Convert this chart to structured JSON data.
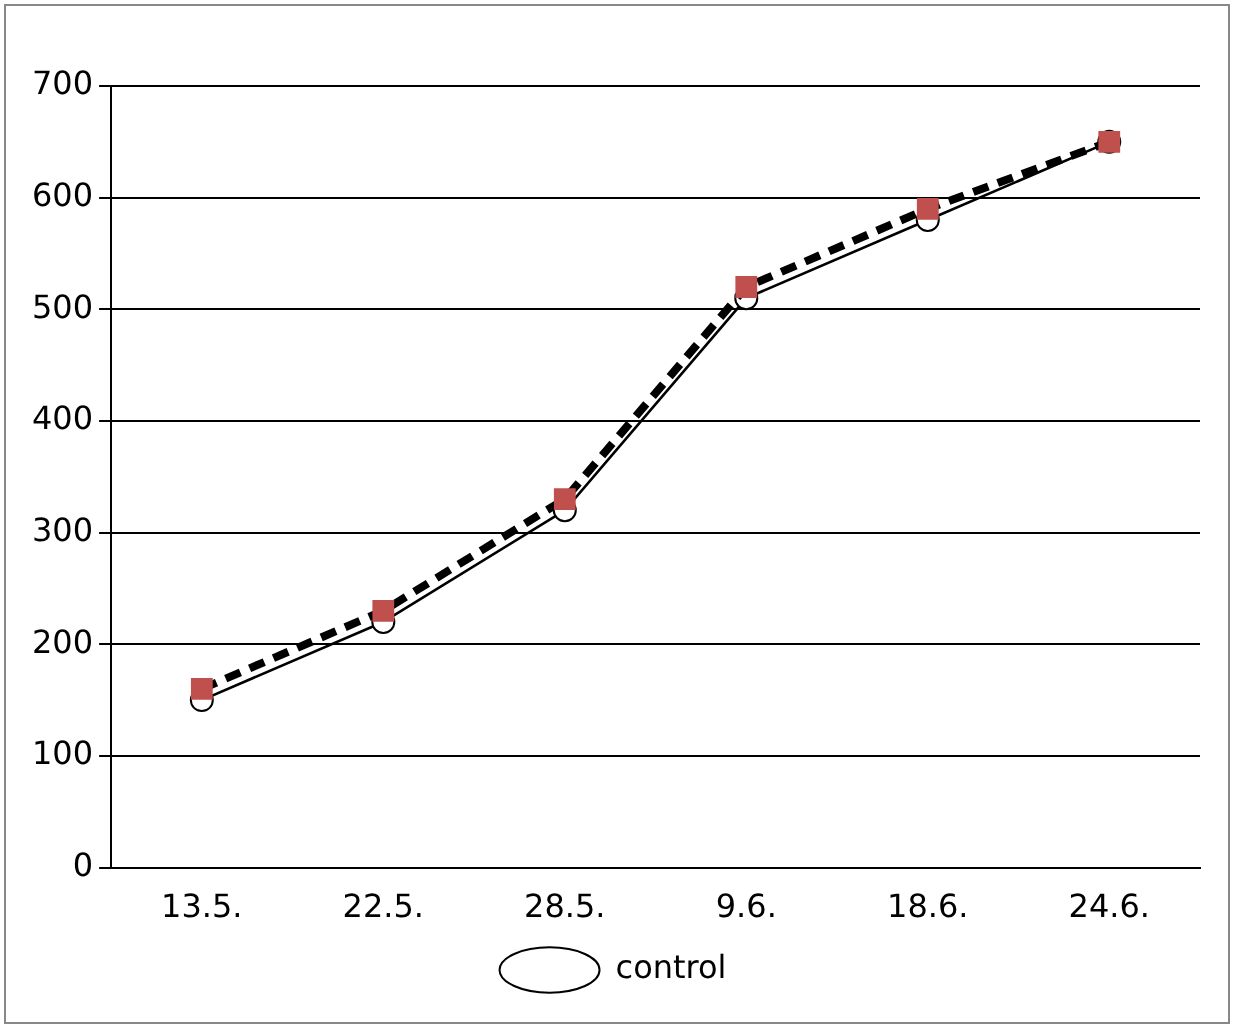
{
  "chart_data": {
    "type": "line",
    "categories": [
      "13.5.",
      "22.5.",
      "28.5.",
      "9.6.",
      "18.6.",
      "24.6."
    ],
    "series": [
      {
        "name": "control",
        "color": "#000000",
        "marker": "circle",
        "line_style": "solid",
        "values": [
          150,
          220,
          320,
          510,
          580,
          650
        ]
      },
      {
        "color": "#000000",
        "marker": "square",
        "line_style": "dashed",
        "values": [
          160,
          230,
          330,
          520,
          590,
          650
        ]
      }
    ],
    "ylim": [
      0,
      700
    ],
    "yticks": [
      0,
      100,
      200,
      300,
      400,
      500,
      600,
      700
    ],
    "grid": "y",
    "legend": "bottom"
  }
}
